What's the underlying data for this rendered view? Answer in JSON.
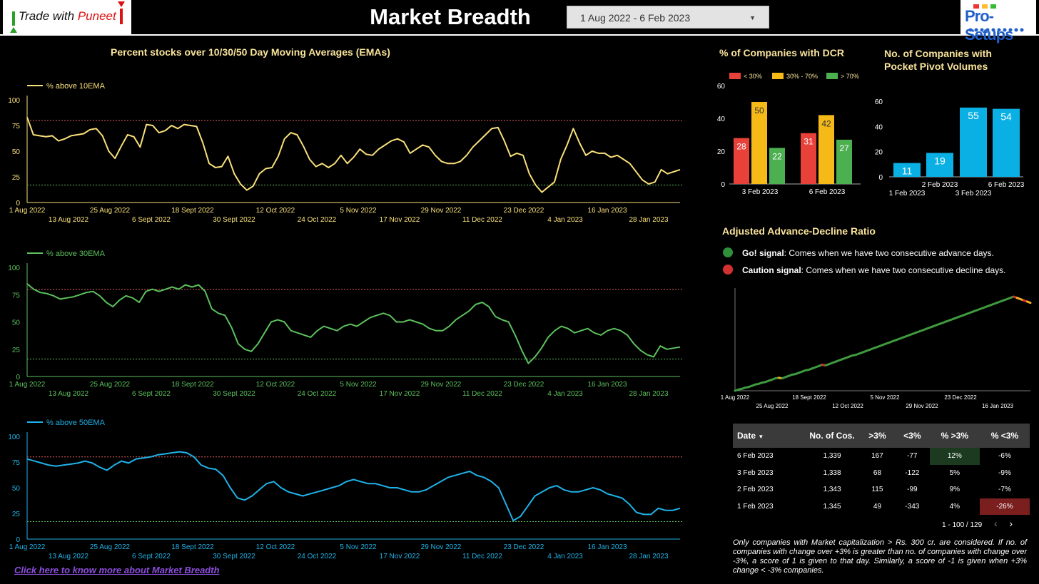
{
  "header": {
    "logo_left": {
      "text": "Trade with",
      "accent": "Puneet"
    },
    "title": "Market Breadth",
    "date_range": "1 Aug 2022 - 6 Feb 2023",
    "logo_right": "Pro-Setups"
  },
  "ema_section": {
    "title": "Percent stocks over 10/30/50 Day Moving Averages (EMAs)",
    "charts": [
      {
        "id": "ema10",
        "legend": "% above 10EMA",
        "color": "#f9e07a"
      },
      {
        "id": "ema30",
        "legend": "% above 30EMA",
        "color": "#5cc15c"
      },
      {
        "id": "ema50",
        "legend": "% above 50EMA",
        "color": "#1fb2e8"
      }
    ],
    "x_labels_top": [
      "1 Aug 2022",
      "25 Aug 2022",
      "18 Sept 2022",
      "12 Oct 2022",
      "5 Nov 2022",
      "29 Nov 2022",
      "23 Dec 2022",
      "16 Jan 2023"
    ],
    "x_labels_bottom": [
      "13 Aug 2022",
      "6 Sept 2022",
      "30 Sept 2022",
      "24 Oct 2022",
      "17 Nov 2022",
      "11 Dec 2022",
      "4 Jan 2023",
      "28 Jan 2023"
    ]
  },
  "dcr": {
    "title": "% of Companies with DCR",
    "legend": [
      {
        "label": "< 30%",
        "color": "#e8413a"
      },
      {
        "label": "30% - 70%",
        "color": "#f5b918"
      },
      {
        "label": "> 70%",
        "color": "#4caf50"
      }
    ]
  },
  "pocket_pivot": {
    "title_line1": "No. of Companies with",
    "title_line2": "Pocket Pivot Volumes"
  },
  "adr": {
    "title": "Adjusted Advance-Decline Ratio",
    "go_label": "Go! signal",
    "go_text": ": Comes when we have two consecutive advance days.",
    "caution_label": "Caution signal",
    "caution_text": ": Comes when we have two consecutive decline days.",
    "x_labels_top": [
      "1 Aug 2022",
      "18 Sept 2022",
      "5 Nov 2022",
      "23 Dec 2022"
    ],
    "x_labels_bottom": [
      "25 Aug 2022",
      "12 Oct 2022",
      "29 Nov 2022",
      "16 Jan 2023"
    ]
  },
  "table": {
    "headers": [
      "Date",
      "No. of Cos.",
      ">3%",
      "<3%",
      "% >3%",
      "% <3%"
    ],
    "rows": [
      [
        "6 Feb 2023",
        "1,339",
        "167",
        "-77",
        "12%",
        "-6%"
      ],
      [
        "3 Feb 2023",
        "1,338",
        "68",
        "-122",
        "5%",
        "-9%"
      ],
      [
        "2 Feb 2023",
        "1,343",
        "115",
        "-99",
        "9%",
        "-7%"
      ],
      [
        "1 Feb 2023",
        "1,345",
        "49",
        "-343",
        "4%",
        "-26%"
      ]
    ],
    "pager": "1 - 100 / 129",
    "note": "Only companies with Market capitalization > Rs. 300 cr. are considered. If no. of companies with change over +3% is greater than no. of companies with change over -3%, a score of 1 is given to that day. Similarly, a score of -1 is given when +3% change < -3% companies."
  },
  "link_text": "Click here to know more about Market Breadth",
  "chart_data": [
    {
      "type": "line",
      "title": "% above 10EMA",
      "ylim": [
        0,
        100
      ],
      "yticks": [
        0,
        25,
        50,
        75,
        100
      ],
      "reference_lines": [
        80,
        17
      ],
      "series": [
        {
          "name": "% above 10EMA",
          "values": [
            83,
            66,
            65,
            64,
            65,
            60,
            62,
            65,
            66,
            67,
            71,
            72,
            65,
            50,
            43,
            55,
            66,
            64,
            54,
            76,
            75,
            68,
            70,
            75,
            72,
            76,
            75,
            74,
            58,
            38,
            34,
            35,
            45,
            28,
            18,
            12,
            16,
            28,
            33,
            34,
            45,
            62,
            68,
            66,
            55,
            42,
            35,
            38,
            34,
            38,
            46,
            38,
            44,
            52,
            47,
            46,
            52,
            56,
            60,
            62,
            59,
            48,
            52,
            56,
            54,
            46,
            40,
            38,
            38,
            40,
            46,
            54,
            60,
            66,
            72,
            73,
            60,
            45,
            48,
            46,
            28,
            17,
            10,
            15,
            20,
            42,
            56,
            72,
            58,
            46,
            50,
            48,
            48,
            44,
            46,
            42,
            38,
            30,
            22,
            18,
            20,
            32,
            28,
            30,
            32
          ]
        }
      ]
    },
    {
      "type": "line",
      "title": "% above 30EMA",
      "ylim": [
        0,
        100
      ],
      "yticks": [
        0,
        25,
        50,
        75,
        100
      ],
      "reference_lines": [
        80,
        16
      ],
      "series": [
        {
          "name": "% above 30EMA",
          "values": [
            85,
            80,
            77,
            76,
            74,
            71,
            72,
            73,
            75,
            77,
            78,
            74,
            68,
            64,
            70,
            74,
            72,
            68,
            78,
            80,
            78,
            80,
            82,
            80,
            84,
            82,
            84,
            78,
            62,
            58,
            56,
            45,
            30,
            25,
            23,
            30,
            40,
            50,
            52,
            50,
            42,
            40,
            38,
            36,
            42,
            46,
            44,
            42,
            46,
            48,
            46,
            50,
            54,
            56,
            58,
            56,
            50,
            50,
            52,
            50,
            48,
            44,
            42,
            42,
            46,
            52,
            56,
            60,
            66,
            68,
            64,
            55,
            52,
            50,
            38,
            24,
            12,
            18,
            26,
            36,
            42,
            46,
            44,
            40,
            42,
            44,
            40,
            38,
            42,
            44,
            42,
            38,
            30,
            24,
            20,
            18,
            28,
            25,
            26,
            27
          ]
        }
      ]
    },
    {
      "type": "line",
      "title": "% above 50EMA",
      "ylim": [
        0,
        100
      ],
      "yticks": [
        0,
        25,
        50,
        75,
        100
      ],
      "reference_lines": [
        80,
        17
      ],
      "series": [
        {
          "name": "% above 50EMA",
          "values": [
            78,
            76,
            74,
            72,
            71,
            72,
            73,
            74,
            76,
            74,
            70,
            67,
            72,
            76,
            74,
            78,
            79,
            80,
            82,
            83,
            84,
            85,
            84,
            80,
            72,
            69,
            68,
            62,
            50,
            40,
            38,
            42,
            48,
            54,
            56,
            50,
            46,
            44,
            42,
            44,
            46,
            48,
            50,
            52,
            56,
            58,
            56,
            54,
            54,
            52,
            50,
            50,
            48,
            46,
            46,
            48,
            52,
            56,
            60,
            62,
            64,
            66,
            62,
            60,
            56,
            50,
            34,
            18,
            22,
            32,
            42,
            46,
            50,
            52,
            48,
            46,
            46,
            48,
            50,
            48,
            44,
            42,
            40,
            34,
            26,
            24,
            24,
            30,
            28,
            28,
            30
          ]
        }
      ]
    },
    {
      "type": "bar",
      "title": "% of Companies with DCR",
      "categories": [
        "3 Feb 2023",
        "6 Feb 2023"
      ],
      "ylim": [
        0,
        60
      ],
      "yticks": [
        0,
        20,
        40,
        60
      ],
      "series": [
        {
          "name": "< 30%",
          "values": [
            28,
            31
          ]
        },
        {
          "name": "30% - 70%",
          "values": [
            50,
            42
          ]
        },
        {
          "name": "> 70%",
          "values": [
            22,
            27
          ]
        }
      ]
    },
    {
      "type": "bar",
      "title": "No. of Companies with Pocket Pivot Volumes",
      "categories": [
        "1 Feb 2023",
        "2 Feb 2023",
        "3 Feb 2023",
        "6 Feb 2023"
      ],
      "ylim": [
        0,
        60
      ],
      "yticks": [
        0,
        20,
        40,
        60
      ],
      "values": [
        11,
        19,
        55,
        54
      ]
    },
    {
      "type": "line",
      "title": "Adjusted Advance-Decline Ratio",
      "series": [
        {
          "name": "Adjusted Advance-Decline Ratio",
          "values": [
            0,
            2,
            3,
            5,
            6,
            8,
            10,
            11,
            13,
            14,
            16,
            18,
            20,
            21,
            20,
            22,
            24,
            26,
            27,
            29,
            31,
            33,
            34,
            36,
            38,
            40,
            42,
            41,
            43,
            45,
            47,
            49,
            51,
            53,
            55,
            57,
            58,
            60,
            62,
            64,
            66,
            68,
            70,
            72,
            74,
            76,
            78,
            80,
            82,
            84,
            86,
            88,
            90,
            92,
            94,
            96,
            98,
            100,
            102,
            104,
            106,
            108,
            110,
            112,
            114,
            116,
            118,
            120,
            122,
            124,
            126,
            128,
            130,
            132,
            134,
            136,
            138,
            140,
            142,
            144,
            146,
            148,
            150,
            152,
            150,
            148,
            146,
            144,
            142
          ]
        }
      ]
    }
  ]
}
